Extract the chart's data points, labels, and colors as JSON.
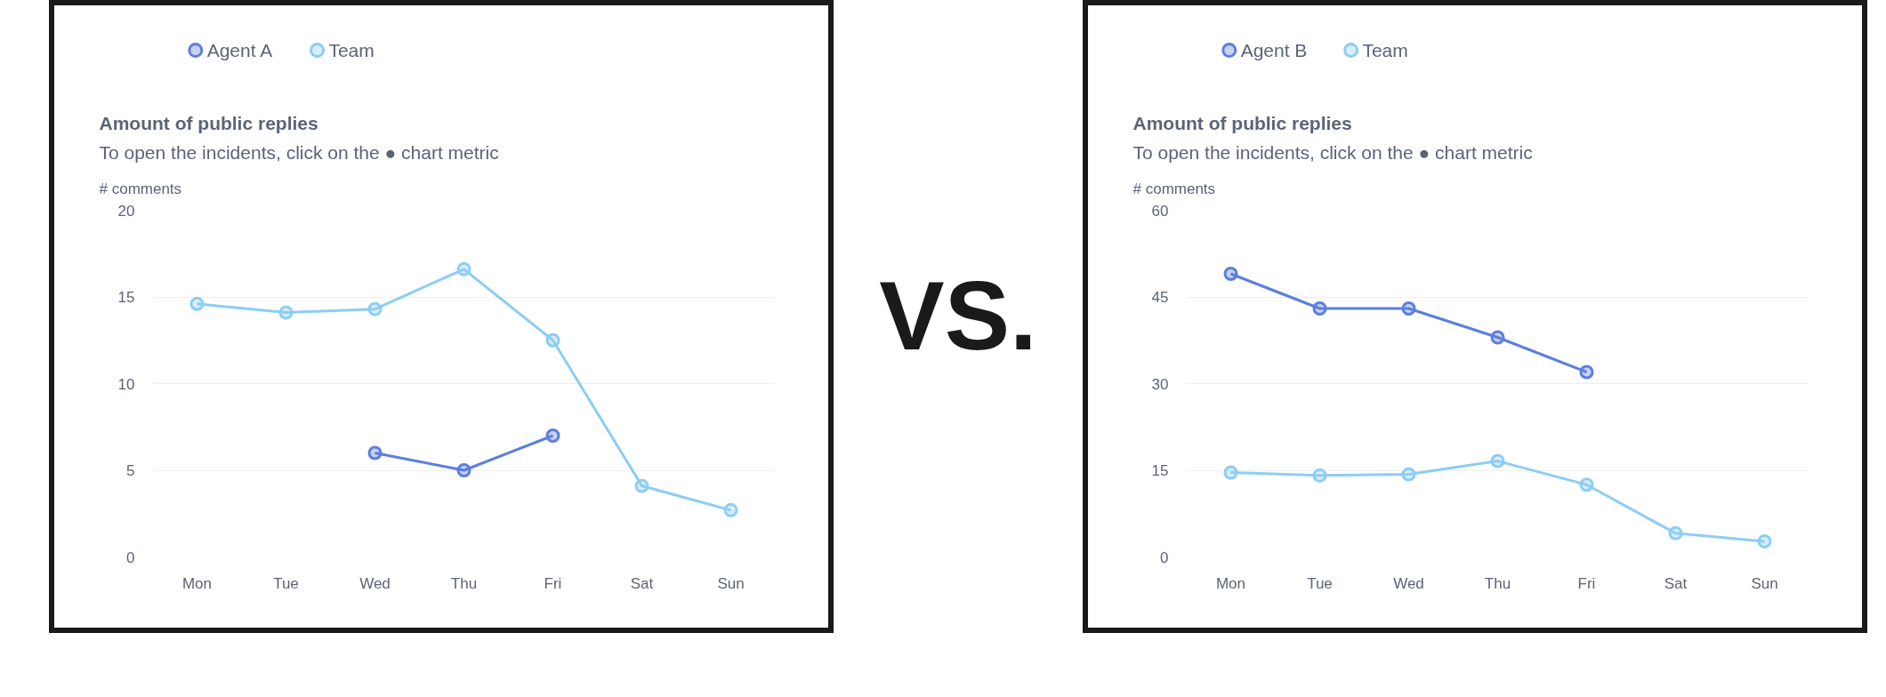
{
  "chart_data": [
    {
      "type": "line",
      "title": "Amount of public replies",
      "subtitle": "To open the incidents, click on the ● chart metric",
      "ylabel": "# comments",
      "categories": [
        "Mon",
        "Tue",
        "Wed",
        "Thu",
        "Fri",
        "Sat",
        "Sun"
      ],
      "series": [
        {
          "name": "Agent A",
          "color": "#5b7fe0",
          "values": [
            null,
            null,
            6,
            5,
            7,
            null,
            null
          ]
        },
        {
          "name": "Team",
          "color": "#8ccdf5",
          "values": [
            14.6,
            14.1,
            14.3,
            16.6,
            12.5,
            4.1,
            2.7
          ]
        }
      ],
      "ylim": [
        0,
        20
      ],
      "yticks": [
        0,
        5,
        10,
        15,
        20
      ],
      "grid": "y",
      "legend": "top left",
      "marker": "circle"
    },
    {
      "type": "other",
      "annotations": [
        "VS."
      ]
    },
    {
      "type": "line",
      "title": "Amount of public replies",
      "subtitle": "To open the incidents, click on the ● chart metric",
      "ylabel": "# comments",
      "categories": [
        "Mon",
        "Tue",
        "Wed",
        "Thu",
        "Fri",
        "Sat",
        "Sun"
      ],
      "series": [
        {
          "name": "Agent B",
          "color": "#5b7fe0",
          "values": [
            49,
            43,
            43,
            38,
            32,
            null,
            null
          ]
        },
        {
          "name": "Team",
          "color": "#8ccdf5",
          "values": [
            14.6,
            14.1,
            14.3,
            16.6,
            12.5,
            4.1,
            2.7
          ]
        }
      ],
      "ylim": [
        0,
        60
      ],
      "yticks": [
        0,
        15,
        30,
        45,
        60
      ],
      "grid": "y",
      "legend": "top left",
      "marker": "circle"
    }
  ]
}
